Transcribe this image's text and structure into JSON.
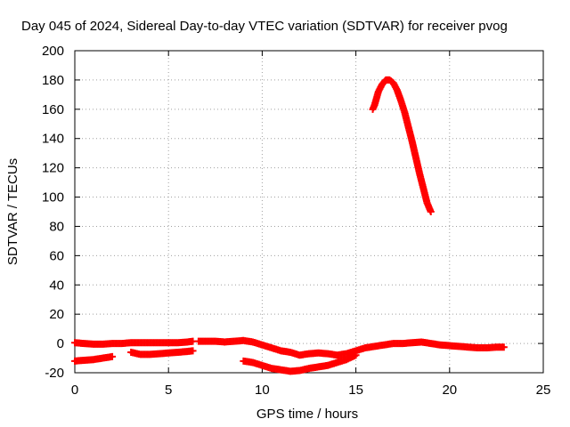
{
  "chart_data": {
    "type": "scatter",
    "title": "Day 045 of 2024, Sidereal Day-to-day VTEC variation (SDTVAR) for receiver pvog",
    "xlabel": "GPS time / hours",
    "ylabel": "SDTVAR / TECUs",
    "xlim": [
      0,
      25
    ],
    "ylim": [
      -20,
      200
    ],
    "x_ticks": [
      0,
      5,
      10,
      15,
      20,
      25
    ],
    "y_ticks": [
      -20,
      0,
      20,
      40,
      60,
      80,
      100,
      120,
      140,
      160,
      180,
      200
    ],
    "grid": true,
    "legend": "none",
    "series": [
      {
        "color": "#ff0000",
        "marker": "plus",
        "segments": [
          [
            [
              0.0,
              0.5
            ],
            [
              0.5,
              0.0
            ],
            [
              1.0,
              -0.5
            ],
            [
              1.5,
              -0.5
            ],
            [
              2.0,
              0.0
            ],
            [
              2.5,
              0.0
            ],
            [
              3.0,
              0.5
            ],
            [
              3.5,
              0.5
            ],
            [
              4.0,
              0.5
            ],
            [
              4.5,
              0.5
            ],
            [
              5.0,
              0.5
            ],
            [
              5.5,
              0.5
            ],
            [
              6.0,
              1.0
            ],
            [
              6.3,
              1.5
            ]
          ],
          [
            [
              0.0,
              -12.0
            ],
            [
              0.5,
              -11.5
            ],
            [
              1.0,
              -11.0
            ],
            [
              1.5,
              -10.0
            ],
            [
              2.0,
              -9.0
            ]
          ],
          [
            [
              3.0,
              -6.0
            ],
            [
              3.5,
              -7.5
            ],
            [
              4.0,
              -7.5
            ],
            [
              4.5,
              -7.0
            ],
            [
              5.0,
              -6.5
            ],
            [
              5.5,
              -6.0
            ],
            [
              6.0,
              -5.5
            ],
            [
              6.3,
              -5.0
            ]
          ],
          [
            [
              6.6,
              1.5
            ],
            [
              7.0,
              1.5
            ],
            [
              7.5,
              1.5
            ],
            [
              8.0,
              1.0
            ],
            [
              8.5,
              1.5
            ],
            [
              9.0,
              2.0
            ],
            [
              9.5,
              1.0
            ],
            [
              10.0,
              -1.0
            ],
            [
              10.5,
              -3.0
            ],
            [
              11.0,
              -5.0
            ],
            [
              11.5,
              -6.0
            ],
            [
              12.0,
              -8.0
            ],
            [
              12.5,
              -7.0
            ],
            [
              13.0,
              -6.5
            ],
            [
              13.5,
              -7.0
            ],
            [
              14.0,
              -8.0
            ],
            [
              14.5,
              -7.0
            ],
            [
              15.0,
              -5.0
            ],
            [
              15.5,
              -3.0
            ],
            [
              16.0,
              -2.0
            ],
            [
              16.5,
              -1.0
            ],
            [
              17.0,
              0.0
            ],
            [
              17.5,
              0.0
            ],
            [
              18.0,
              0.5
            ],
            [
              18.5,
              1.0
            ],
            [
              19.0,
              0.0
            ],
            [
              19.5,
              -1.0
            ],
            [
              20.0,
              -1.5
            ],
            [
              20.5,
              -2.0
            ],
            [
              21.0,
              -2.5
            ],
            [
              21.5,
              -3.0
            ],
            [
              22.0,
              -3.0
            ],
            [
              22.5,
              -2.5
            ],
            [
              22.9,
              -2.5
            ]
          ],
          [
            [
              9.0,
              -12.0
            ],
            [
              9.5,
              -13.0
            ],
            [
              10.0,
              -15.0
            ],
            [
              10.5,
              -17.0
            ],
            [
              11.0,
              -18.0
            ],
            [
              11.5,
              -19.0
            ],
            [
              12.0,
              -18.5
            ],
            [
              12.5,
              -17.0
            ],
            [
              13.0,
              -16.0
            ],
            [
              13.5,
              -15.0
            ],
            [
              14.0,
              -13.0
            ],
            [
              14.5,
              -11.0
            ],
            [
              15.0,
              -8.0
            ]
          ],
          [
            [
              15.9,
              160.0
            ],
            [
              16.0,
              163.0
            ],
            [
              16.2,
              172.0
            ],
            [
              16.4,
              177.0
            ],
            [
              16.6,
              180.0
            ],
            [
              16.8,
              180.0
            ],
            [
              17.0,
              178.0
            ],
            [
              17.2,
              173.0
            ],
            [
              17.4,
              166.0
            ],
            [
              17.6,
              158.0
            ],
            [
              17.8,
              148.0
            ],
            [
              18.0,
              138.0
            ],
            [
              18.2,
              127.0
            ],
            [
              18.4,
              116.0
            ],
            [
              18.6,
              106.0
            ],
            [
              18.8,
              96.0
            ],
            [
              19.0,
              90.0
            ]
          ]
        ]
      }
    ]
  }
}
